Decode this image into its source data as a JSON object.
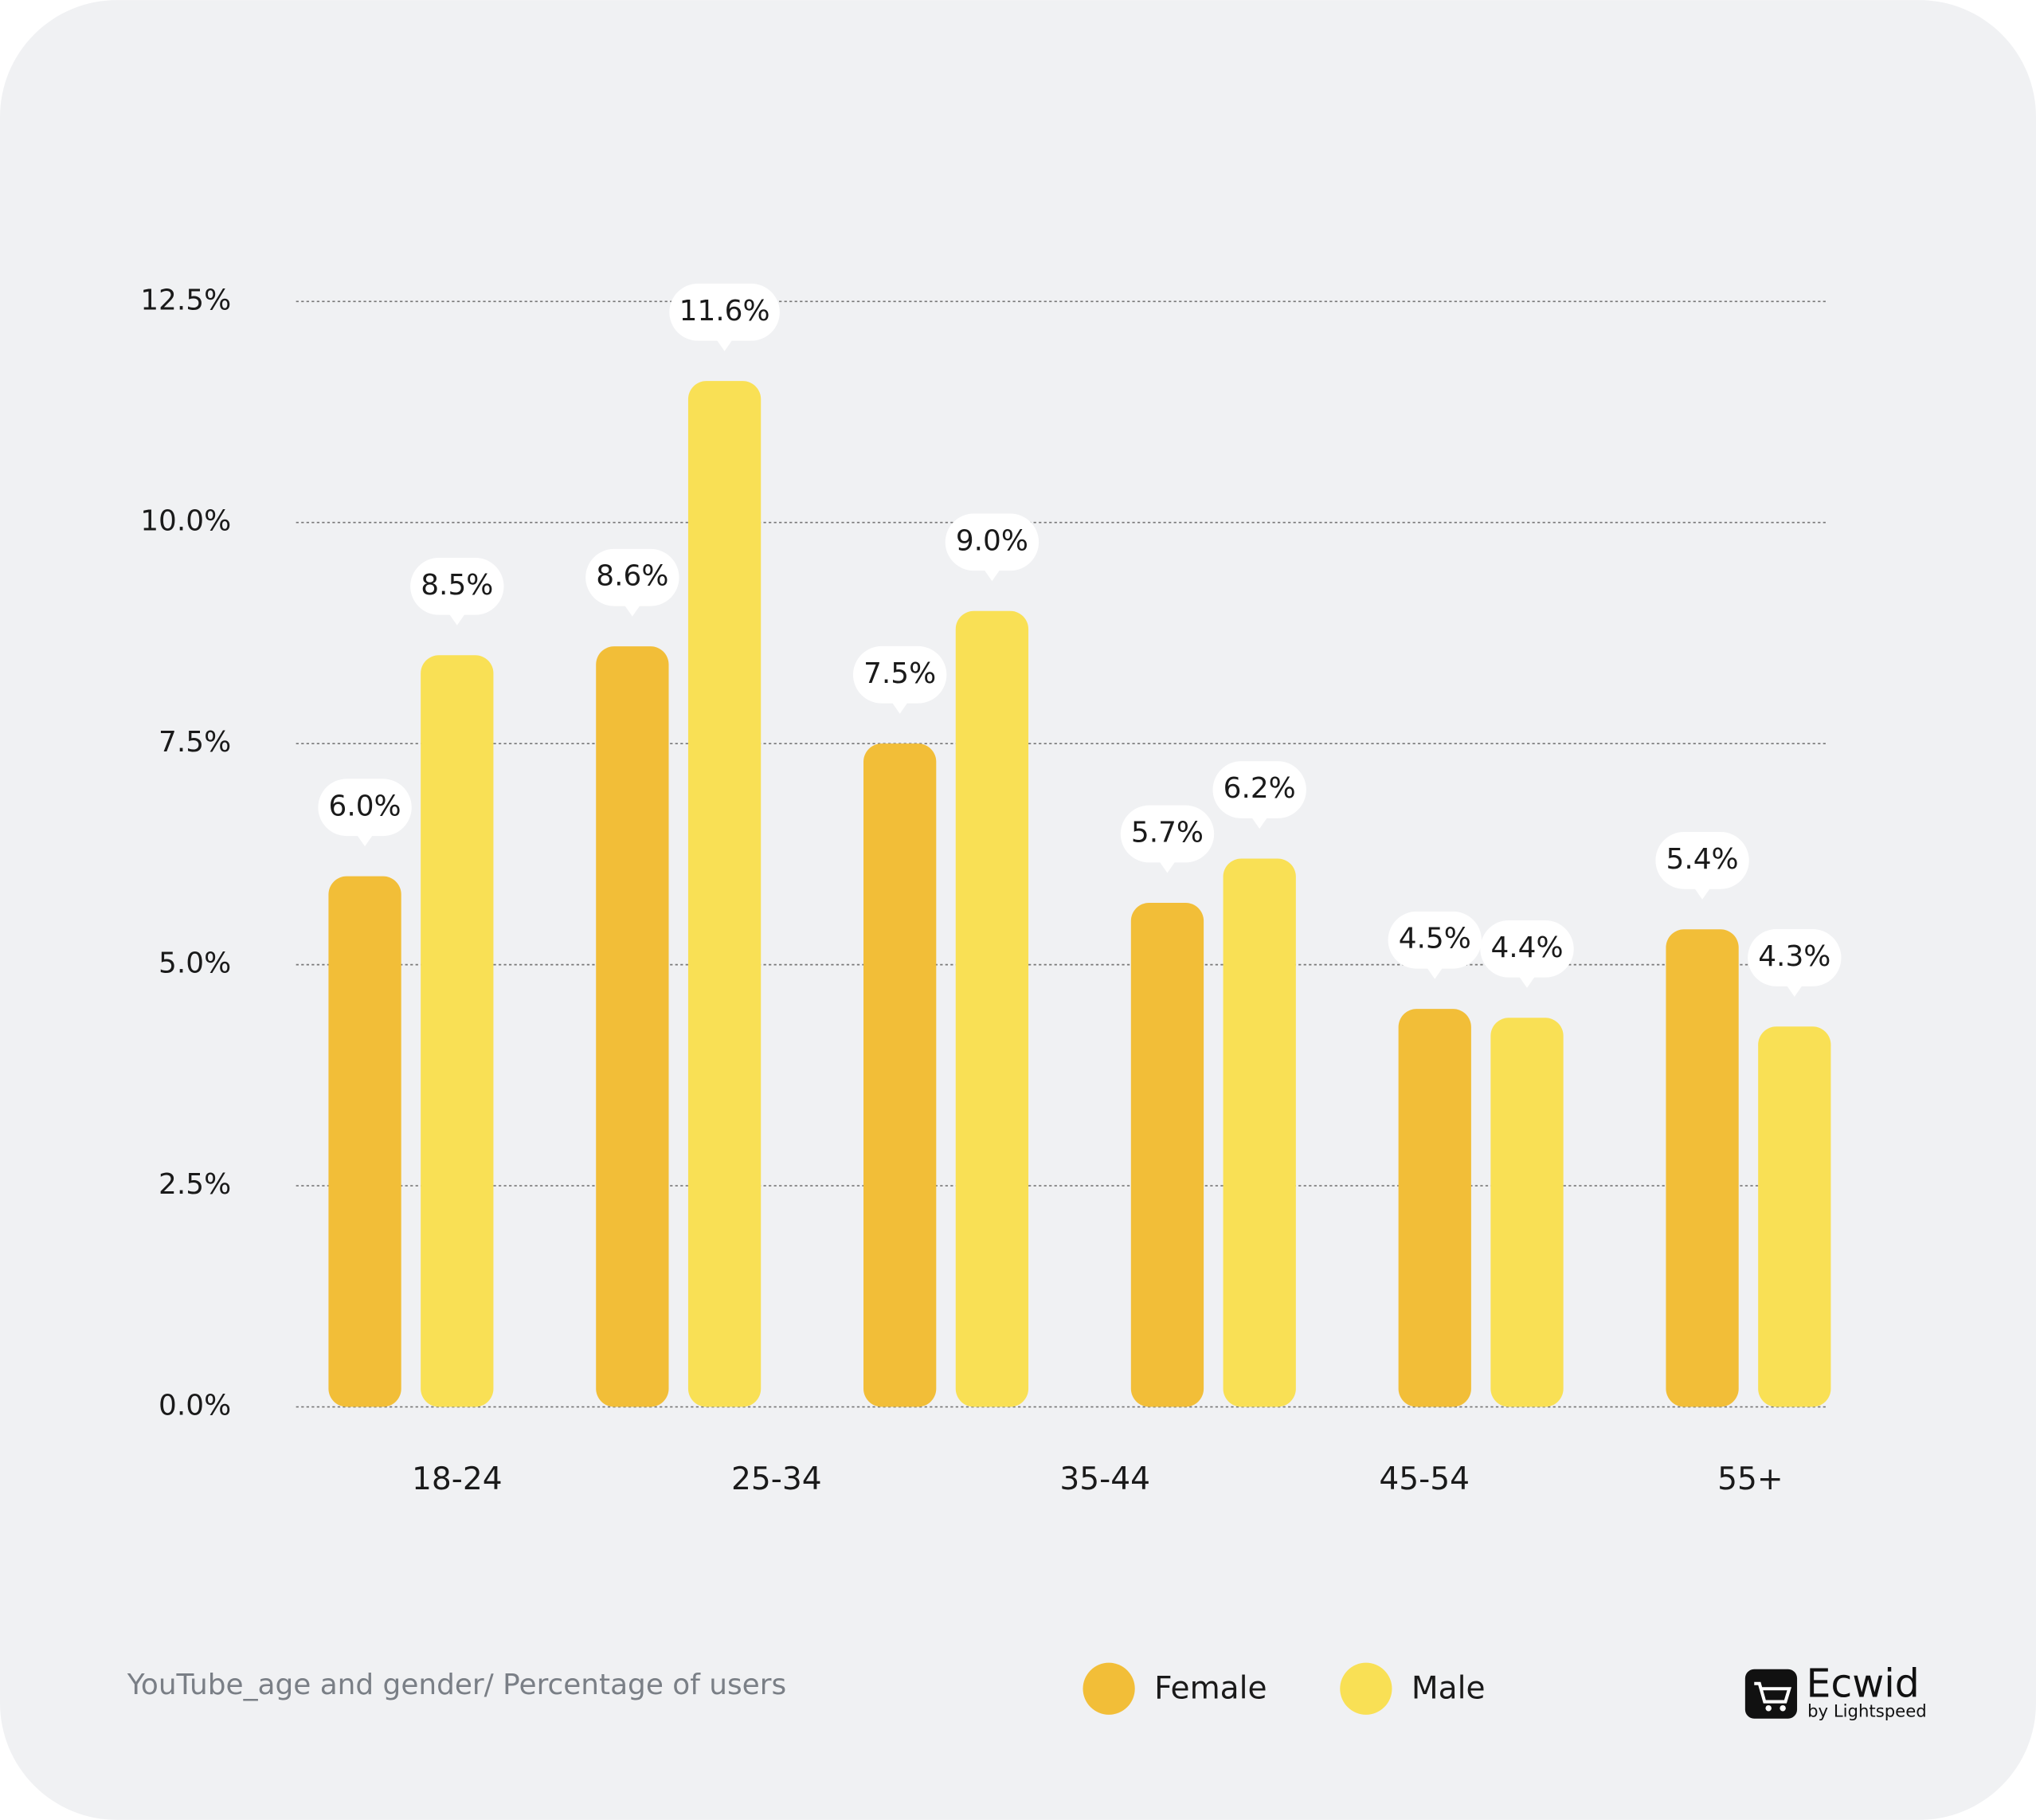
{
  "chart_data": {
    "type": "bar",
    "caption": "YouTube_age and gender/ Percentage of users",
    "categories": [
      "18-24",
      "25-34",
      null,
      "35-44",
      "45-54",
      "55+"
    ],
    "series": [
      {
        "name": "Female",
        "color": "#f2be38",
        "values": [
          6.0,
          8.6,
          7.5,
          5.7,
          4.5,
          5.4
        ],
        "value_labels": [
          "6.0%",
          "8.6%",
          "7.5%",
          "5.7%",
          "4.5%",
          "5.4%"
        ]
      },
      {
        "name": "Male",
        "color": "#f9e055",
        "values": [
          8.5,
          11.6,
          9.0,
          6.2,
          4.4,
          4.3
        ],
        "value_labels": [
          "8.5%",
          "11.6%",
          "9.0%",
          "6.2%",
          "4.4%",
          "4.3%"
        ]
      }
    ],
    "ylim": [
      0,
      12.5
    ],
    "yticks": [
      {
        "value": 0,
        "label": "0.0%"
      },
      {
        "value": 2.5,
        "label": "2.5%"
      },
      {
        "value": 5,
        "label": "5.0%"
      },
      {
        "value": 7.5,
        "label": "7.5%"
      },
      {
        "value": 10,
        "label": "10.0%"
      },
      {
        "value": 12.5,
        "label": "12.5%"
      }
    ],
    "grid": true
  },
  "brand": {
    "name": "Ecwid",
    "tagline": "by Lightspeed"
  }
}
